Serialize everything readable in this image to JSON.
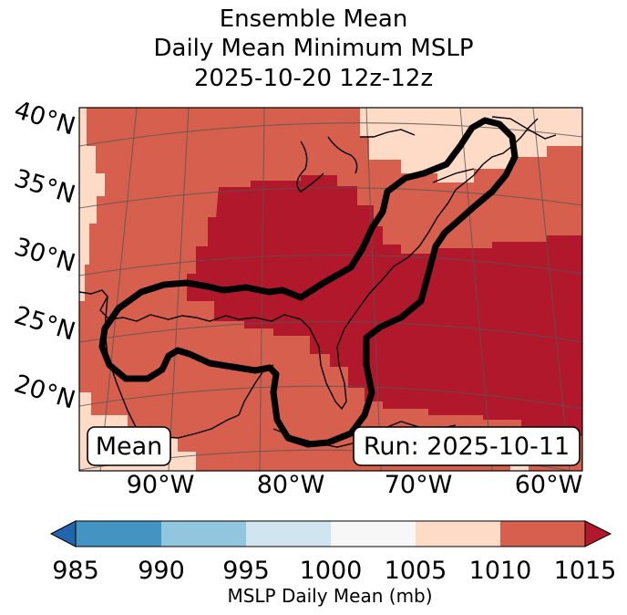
{
  "title": {
    "line1": "Ensemble Mean",
    "line2": "Daily Mean Minimum MSLP",
    "line3": "2025-10-20 12z-12z"
  },
  "map": {
    "lat_labels": [
      "40°N",
      "35°N",
      "30°N",
      "25°N",
      "20°N"
    ],
    "lon_labels": [
      "90°W",
      "80°W",
      "70°W",
      "60°W"
    ],
    "badge_left": "Mean",
    "badge_right": "Run: 2025-10-11"
  },
  "colorbar": {
    "label": "MSLP Daily Mean (mb)",
    "ticks": [
      "985",
      "990",
      "995",
      "1000",
      "1005",
      "1010",
      "1015"
    ],
    "colors": {
      "below": "#2166ac",
      "bin_985_990": "#4393c3",
      "bin_990_995": "#92c5de",
      "bin_995_1000": "#d1e5f0",
      "bin_1000_1005": "#f7f7f7",
      "bin_1005_1010": "#fddbc7",
      "bin_1010_1015": "#d6604d",
      "above": "#b2182b"
    }
  }
}
